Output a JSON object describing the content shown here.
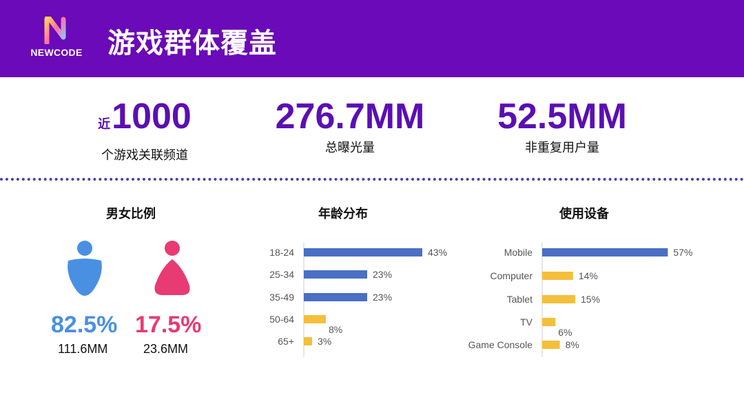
{
  "header": {
    "logo_text": "NEWCODE",
    "title": "游戏群体覆盖"
  },
  "stats": [
    {
      "prefix": "近",
      "value": "1000",
      "label": "个游戏关联频道"
    },
    {
      "prefix": "",
      "value": "276.7MM",
      "label": "总曝光量"
    },
    {
      "prefix": "",
      "value": "52.5MM",
      "label": "非重复用户量"
    }
  ],
  "gender": {
    "title": "男女比例",
    "male": {
      "pct": "82.5%",
      "count": "111.6MM",
      "color": "#4a90e2"
    },
    "female": {
      "pct": "17.5%",
      "count": "23.6MM",
      "color": "#e83a73"
    }
  },
  "colors": {
    "header_bg": "#6a0ab8",
    "accent": "#5b0fb3",
    "bar_blue": "#4a6fc4",
    "bar_yellow": "#f4bf3a"
  },
  "chart_data": [
    {
      "type": "bar",
      "orientation": "horizontal",
      "title": "男女比例",
      "categories": [
        "男",
        "女"
      ],
      "values": [
        82.5,
        17.5
      ],
      "unit": "%"
    },
    {
      "type": "bar",
      "orientation": "horizontal",
      "title": "年龄分布",
      "categories": [
        "18-24",
        "25-34",
        "35-49",
        "50-64",
        "65+"
      ],
      "values": [
        43,
        23,
        23,
        8,
        3
      ],
      "value_labels": [
        "43%",
        "23%",
        "23%",
        "8%",
        "3%"
      ],
      "highlight": [
        true,
        true,
        true,
        false,
        false
      ],
      "xlim": [
        0,
        50
      ]
    },
    {
      "type": "bar",
      "orientation": "horizontal",
      "title": "使用设备",
      "categories": [
        "Mobile",
        "Computer",
        "Tablet",
        "TV",
        "Game Console"
      ],
      "values": [
        57,
        14,
        15,
        6,
        8
      ],
      "value_labels": [
        "57%",
        "14%",
        "15%",
        "6%",
        "8%"
      ],
      "highlight": [
        true,
        false,
        false,
        false,
        false
      ],
      "xlim": [
        0,
        60
      ]
    }
  ]
}
